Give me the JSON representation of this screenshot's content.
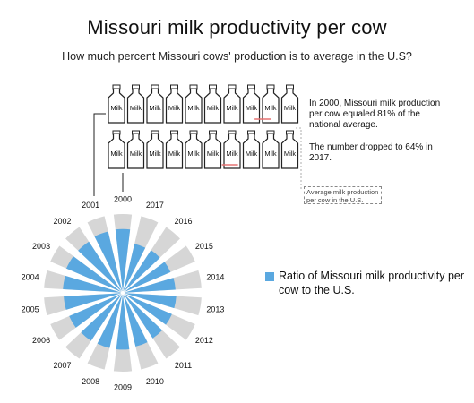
{
  "header": {
    "title": "Missouri milk productivity per cow",
    "subtitle": "How much percent Missouri cows' production is to average in the U.S?"
  },
  "bottles": {
    "label": "Milk",
    "row_2000": {
      "year": "2000",
      "ratio": 0.81
    },
    "row_2017": {
      "year": "2017",
      "ratio": 0.64
    },
    "count": 10,
    "marker_color": "#e57373"
  },
  "notes": {
    "note_2000": "In 2000, Missouri milk production per cow equaled 81% of the national average.",
    "note_2017": "The number dropped to 64% in 2017.",
    "avg_label": "Average milk production per cow in the U.S."
  },
  "legend": {
    "label": "Ratio of Missouri milk productivity per cow to the U.S."
  },
  "colors": {
    "missouri": "#5aa8e0",
    "us_average": "#d6d6d6"
  },
  "chart_data": {
    "type": "radial-bar",
    "categories": [
      "2000",
      "2001",
      "2002",
      "2003",
      "2004",
      "2005",
      "2006",
      "2007",
      "2008",
      "2009",
      "2010",
      "2011",
      "2012",
      "2013",
      "2014",
      "2015",
      "2016",
      "2017"
    ],
    "series": [
      {
        "name": "Ratio of Missouri milk productivity per cow to the U.S.",
        "values": [
          0.81,
          0.8,
          0.78,
          0.78,
          0.76,
          0.75,
          0.74,
          0.73,
          0.72,
          0.72,
          0.7,
          0.69,
          0.68,
          0.68,
          0.67,
          0.66,
          0.65,
          0.64
        ]
      }
    ],
    "reference_value": 1.0
  }
}
